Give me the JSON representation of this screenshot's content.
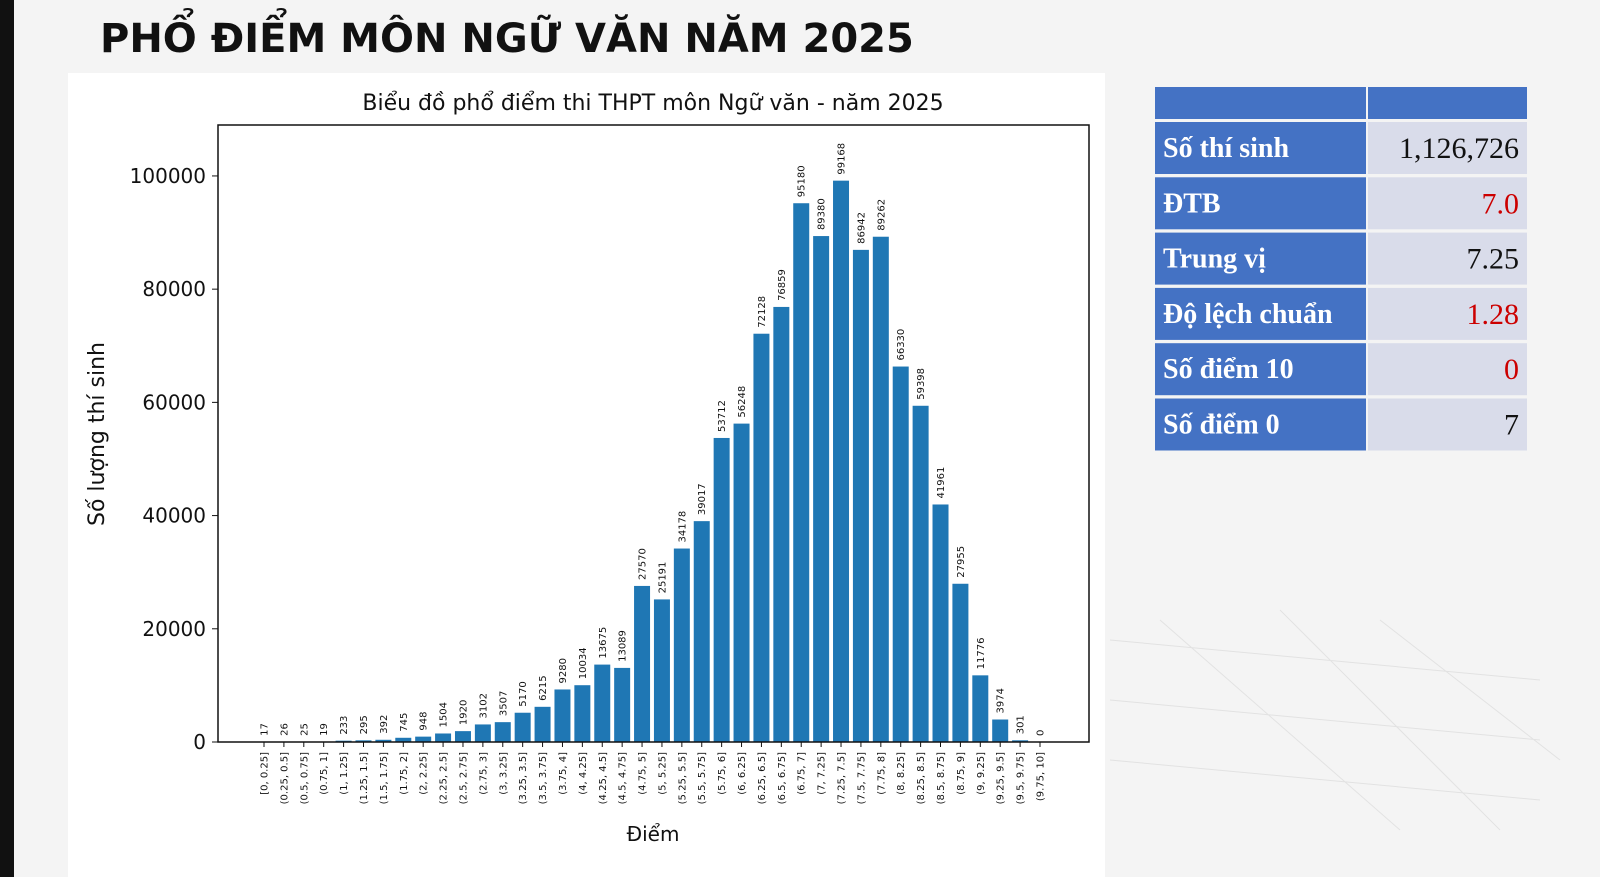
{
  "header": {
    "title": "PHỔ ĐIỂM MÔN NGỮ VĂN NĂM 2025"
  },
  "chart_data": {
    "type": "bar",
    "title": "Biểu đồ phổ điểm thi THPT môn Ngữ văn - năm 2025",
    "x_label": "Điểm",
    "y_label": "Số lượng thí sinh",
    "color": "#1f77b4",
    "categories": [
      "[0, 0.25]",
      "(0.25, 0.5]",
      "(0.5, 0.75]",
      "(0.75, 1]",
      "(1, 1.25]",
      "(1.25, 1.5]",
      "(1.5, 1.75]",
      "(1.75, 2]",
      "(2, 2.25]",
      "(2.25, 2.5]",
      "(2.5, 2.75]",
      "(2.75, 3]",
      "(3, 3.25]",
      "(3.25, 3.5]",
      "(3.5, 3.75]",
      "(3.75, 4]",
      "(4, 4.25]",
      "(4.25, 4.5]",
      "(4.5, 4.75]",
      "(4.75, 5]",
      "(5, 5.25]",
      "(5.25, 5.5]",
      "(5.5, 5.75]",
      "(5.75, 6]",
      "(6, 6.25]",
      "(6.25, 6.5]",
      "(6.5, 6.75]",
      "(6.75, 7]",
      "(7, 7.25]",
      "(7.25, 7.5]",
      "(7.5, 7.75]",
      "(7.75, 8]",
      "(8, 8.25]",
      "(8.25, 8.5]",
      "(8.5, 8.75]",
      "(8.75, 9]",
      "(9, 9.25]",
      "(9.25, 9.5]",
      "(9.5, 9.75]",
      "(9.75, 10]"
    ],
    "values": [
      17,
      26,
      25,
      19,
      233,
      295,
      392,
      745,
      948,
      1504,
      1920,
      3102,
      3507,
      5170,
      6215,
      9280,
      10034,
      13675,
      13089,
      27570,
      25191,
      34178,
      39017,
      53712,
      56248,
      72128,
      76859,
      95180,
      89380,
      99168,
      86942,
      89262,
      66330,
      59398,
      41961,
      27955,
      11776,
      3974,
      301,
      0
    ],
    "ylim": [
      0,
      109000
    ],
    "yticks": [
      0,
      20000,
      40000,
      60000,
      80000,
      100000
    ]
  },
  "table": {
    "rows": [
      {
        "label": "Số thí sinh",
        "value": "1,126,726",
        "color": "#111111"
      },
      {
        "label": "ĐTB",
        "value": "7.0",
        "color": "#cc0000"
      },
      {
        "label": "Trung vị",
        "value": "7.25",
        "color": "#111111"
      },
      {
        "label": "Độ lệch chuẩn",
        "value": "1.28",
        "color": "#cc0000"
      },
      {
        "label": "Số điểm 10",
        "value": "0",
        "color": "#cc0000"
      },
      {
        "label": "Số điểm 0",
        "value": "7",
        "color": "#111111"
      }
    ]
  }
}
